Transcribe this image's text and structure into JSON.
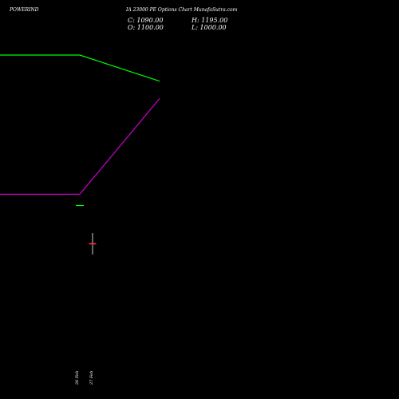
{
  "header": {
    "symbol": "POWERIND",
    "subtitle": "IA 23000 PE Options Chart MunafaSutra.com"
  },
  "ohlc": {
    "close": "C: 1090.00",
    "high": "H: 1195.00",
    "open": "O: 1100.00",
    "low": "L: 1000.00"
  },
  "colors": {
    "background": "#000000",
    "text": "#ffffff",
    "green_line": "#00ff00",
    "magenta_line": "#cc00cc",
    "up_candle": "#00ff00",
    "down_candle": "#ff3333",
    "wick": "#ffffff"
  },
  "chart_data": {
    "type": "line",
    "title": "",
    "xlabel": "",
    "ylabel": "",
    "x_ticks": [
      "26 Feb",
      "27 Feb"
    ],
    "series": [
      {
        "name": "",
        "color": "#00ff00",
        "values": [
          1,
          1,
          0.85
        ]
      },
      {
        "name": "",
        "color": "#cc00cc",
        "values": [
          0.2,
          0.2,
          0.75
        ]
      }
    ],
    "candles": [
      {
        "date": "26 Feb",
        "open": 1100,
        "high": 1100,
        "low": 1100,
        "close": 1100
      },
      {
        "date": "27 Feb",
        "open": 1100,
        "high": 1195,
        "low": 1000,
        "close": 1090
      }
    ]
  }
}
